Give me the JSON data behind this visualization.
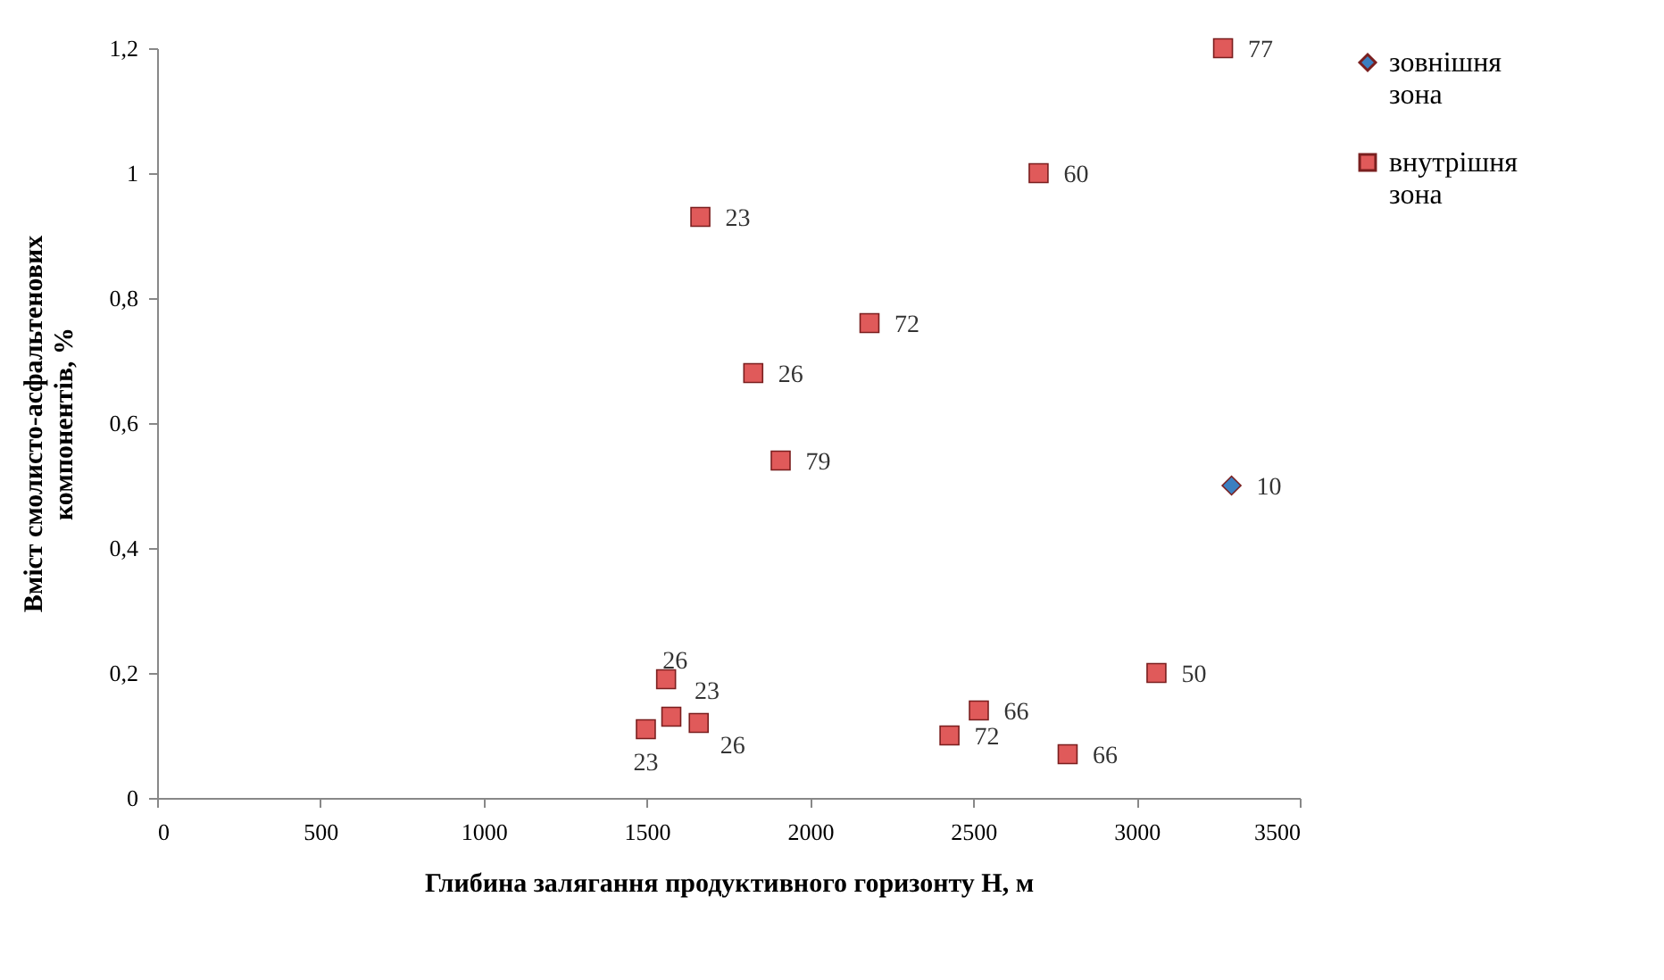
{
  "chart_data": {
    "type": "scatter",
    "xlabel": "Глибина залягання продуктивного горизонту H, м",
    "ylabel": "Вміст смолисто-асфальтенових компонентів, %",
    "series": [
      {
        "name": "зовнішня зона",
        "color": "#3b7fc0",
        "marker": "diamond",
        "x": [
          3291
        ],
        "values": [
          0.5
        ]
      },
      {
        "name": "внутрішня зона",
        "color": "#e05a5a",
        "marker": "square",
        "x": [
          3265,
          2700,
          1664,
          2182,
          1826,
          1910,
          3061,
          1559,
          1575,
          1497,
          1659,
          2517,
          2427,
          2789
        ],
        "values": [
          1.2,
          1.0,
          0.93,
          0.76,
          0.68,
          0.54,
          0.2,
          0.19,
          0.13,
          0.11,
          0.12,
          0.14,
          0.1,
          0.07
        ]
      }
    ],
    "annotations": [
      {
        "text": "10",
        "x": 3291,
        "y": 0.5
      },
      {
        "text": "77",
        "x": 3265,
        "y": 1.2
      },
      {
        "text": "60",
        "x": 2700,
        "y": 1.0
      },
      {
        "text": "23",
        "x": 1664,
        "y": 0.93
      },
      {
        "text": "72",
        "x": 2182,
        "y": 0.76
      },
      {
        "text": "26",
        "x": 1826,
        "y": 0.68
      },
      {
        "text": "79",
        "x": 1910,
        "y": 0.54
      },
      {
        "text": "50",
        "x": 3061,
        "y": 0.2
      },
      {
        "text": "26",
        "x": 1559,
        "y": 0.19
      },
      {
        "text": "23",
        "x": 1575,
        "y": 0.13
      },
      {
        "text": "23",
        "x": 1497,
        "y": 0.11
      },
      {
        "text": "26",
        "x": 1659,
        "y": 0.12
      },
      {
        "text": "66",
        "x": 2517,
        "y": 0.14
      },
      {
        "text": "72",
        "x": 2427,
        "y": 0.1
      },
      {
        "text": "66",
        "x": 2789,
        "y": 0.07
      }
    ],
    "xlim": [
      0,
      3500
    ],
    "xticks": [
      0,
      500,
      1000,
      1500,
      2000,
      2500,
      3000,
      3500
    ],
    "ylim": [
      0,
      1.2
    ],
    "yticks": [
      0,
      {
        "value": 0.2,
        "label": "0,2"
      },
      {
        "value": 0.4,
        "label": "0,4"
      },
      {
        "value": 0.6,
        "label": "0,6"
      },
      {
        "value": 0.8,
        "label": "0,8"
      },
      1,
      {
        "value": 1.2,
        "label": "1,2"
      }
    ],
    "grid": false,
    "legend": "right"
  }
}
